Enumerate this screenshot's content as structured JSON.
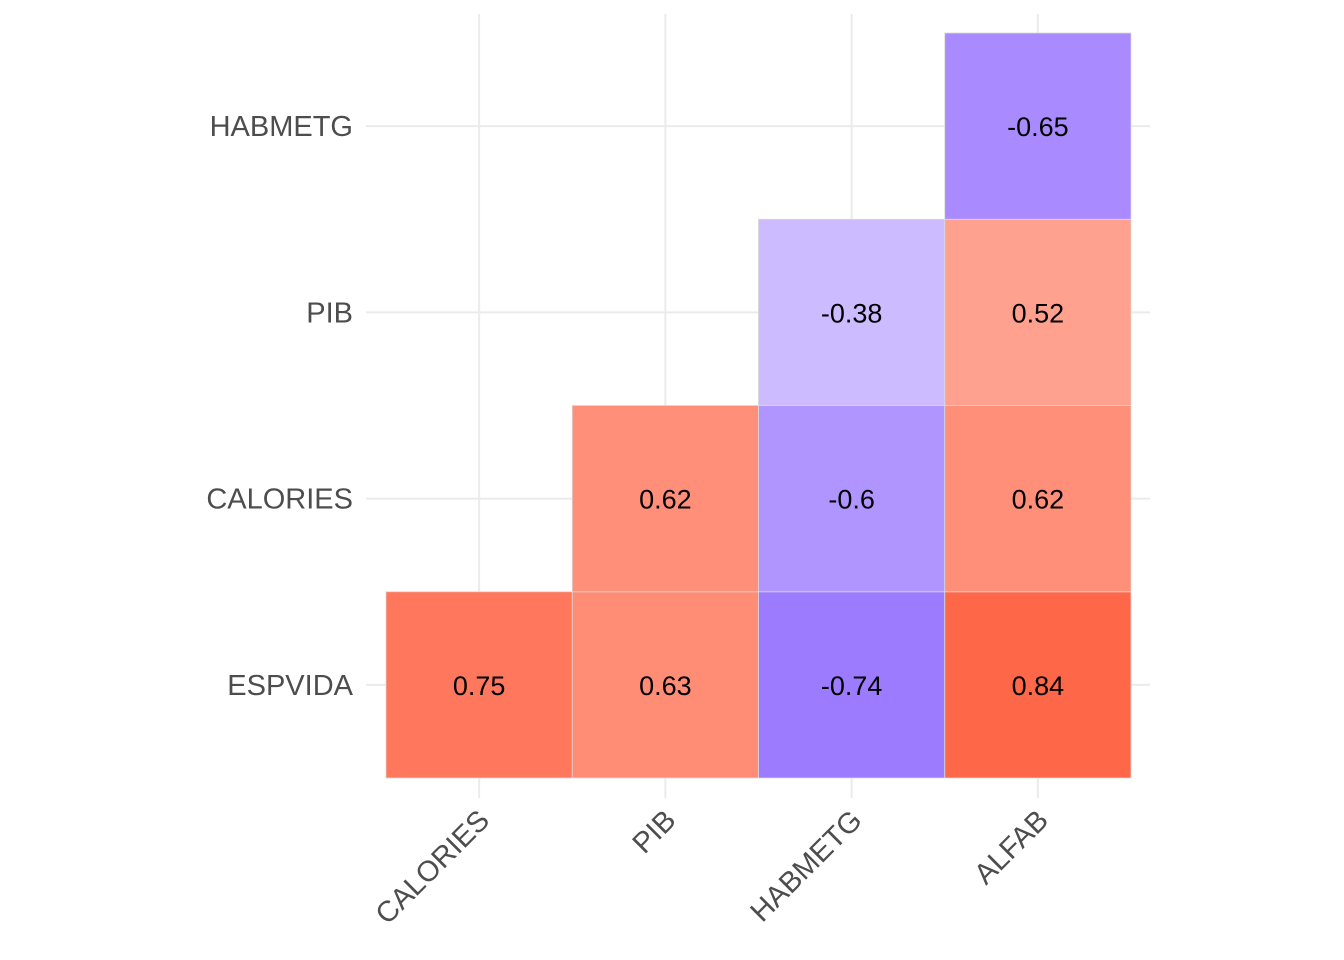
{
  "chart_data": {
    "type": "heatmap",
    "title": "",
    "xlabel": "",
    "ylabel": "",
    "x_categories": [
      "CALORIES",
      "PIB",
      "HABMETG",
      "ALFAB"
    ],
    "y_categories": [
      "ESPVIDA",
      "CALORIES",
      "PIB",
      "HABMETG"
    ],
    "cells": [
      {
        "x": "CALORIES",
        "y": "ESPVIDA",
        "value": 0.75,
        "label": "0.75"
      },
      {
        "x": "PIB",
        "y": "ESPVIDA",
        "value": 0.63,
        "label": "0.63"
      },
      {
        "x": "HABMETG",
        "y": "ESPVIDA",
        "value": -0.74,
        "label": "-0.74"
      },
      {
        "x": "ALFAB",
        "y": "ESPVIDA",
        "value": 0.84,
        "label": "0.84"
      },
      {
        "x": "PIB",
        "y": "CALORIES",
        "value": 0.62,
        "label": "0.62"
      },
      {
        "x": "HABMETG",
        "y": "CALORIES",
        "value": -0.6,
        "label": "-0.6"
      },
      {
        "x": "ALFAB",
        "y": "CALORIES",
        "value": 0.62,
        "label": "0.62"
      },
      {
        "x": "HABMETG",
        "y": "PIB",
        "value": -0.38,
        "label": "-0.38"
      },
      {
        "x": "ALFAB",
        "y": "PIB",
        "value": 0.52,
        "label": "0.52"
      },
      {
        "x": "ALFAB",
        "y": "HABMETG",
        "value": -0.65,
        "label": "-0.65"
      }
    ],
    "color_scale": {
      "low": "#7b4dff",
      "mid": "#ffffff",
      "high": "#ff4a26",
      "limits": [
        -1,
        1
      ]
    },
    "grid": true,
    "legend": "none"
  }
}
